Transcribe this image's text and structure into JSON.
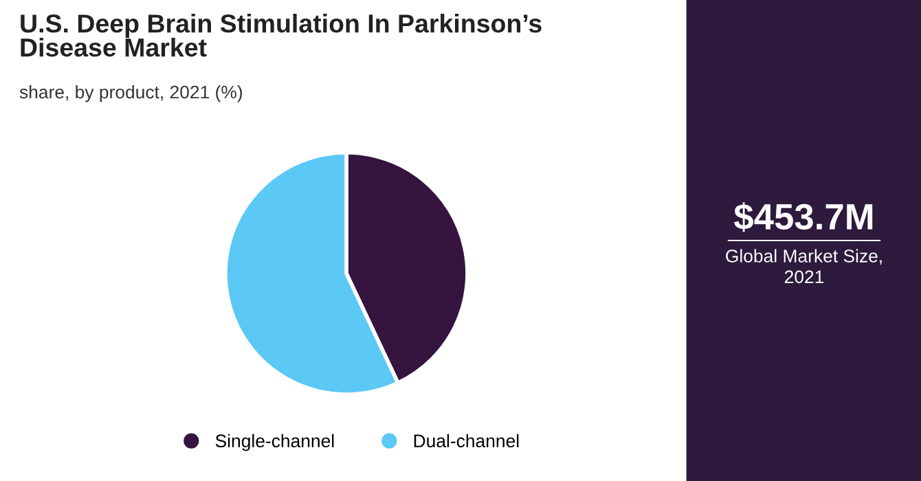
{
  "chart_data": {
    "type": "pie",
    "title": "U.S. Deep Brain Stimulation In Parkinson’s\nDisease Market",
    "subtitle": "share, by product, 2021 (%)",
    "categories": [
      "Single-channel",
      "Dual-channel"
    ],
    "values": [
      43,
      57
    ],
    "colors": [
      "#35153f",
      "#5bc8f5"
    ],
    "legend": "bottom",
    "annotations": [
      "$453.7M",
      "Global Market Size,\n2021"
    ]
  }
}
